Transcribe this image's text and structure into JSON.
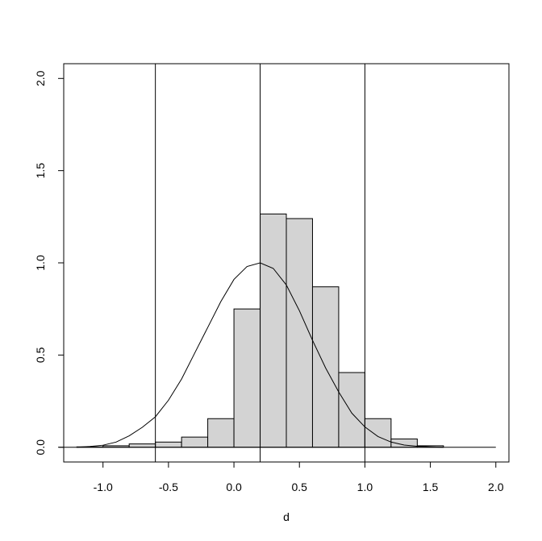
{
  "chart_data": {
    "type": "bar",
    "title": "",
    "xlabel": "d",
    "ylabel": "",
    "xlim": [
      -1.3,
      2.1
    ],
    "ylim": [
      -0.08,
      2.08
    ],
    "xticks": [
      -1.0,
      -0.5,
      0.0,
      0.5,
      1.0,
      1.5,
      2.0
    ],
    "xtick_labels": [
      "-1.0",
      "-0.5",
      "0.0",
      "0.5",
      "1.0",
      "1.5",
      "2.0"
    ],
    "yticks": [
      0.0,
      0.5,
      1.0,
      1.5,
      2.0
    ],
    "ytick_labels": [
      "0.0",
      "0.5",
      "1.0",
      "1.5",
      "2.0"
    ],
    "grid": false,
    "bar_fill": "#d3d3d3",
    "line_color": "#000000",
    "histogram": {
      "bin_edges": [
        -1.2,
        -1.0,
        -0.8,
        -0.6,
        -0.4,
        -0.2,
        0.0,
        0.2,
        0.4,
        0.6,
        0.8,
        1.0,
        1.2,
        1.4,
        1.6
      ],
      "densities": [
        0.002,
        0.008,
        0.018,
        0.028,
        0.055,
        0.155,
        0.75,
        1.265,
        1.24,
        0.87,
        0.405,
        0.155,
        0.045,
        0.008
      ]
    },
    "density_curve": {
      "x": [
        -1.2,
        -1.1,
        -1.0,
        -0.9,
        -0.8,
        -0.7,
        -0.6,
        -0.5,
        -0.4,
        -0.3,
        -0.2,
        -0.1,
        0.0,
        0.1,
        0.2,
        0.3,
        0.4,
        0.5,
        0.6,
        0.7,
        0.8,
        0.9,
        1.0,
        1.1,
        1.2,
        1.3,
        1.4,
        1.5,
        1.6
      ],
      "y": [
        0.0,
        0.004,
        0.011,
        0.028,
        0.062,
        0.108,
        0.165,
        0.255,
        0.37,
        0.51,
        0.65,
        0.79,
        0.91,
        0.98,
        1.0,
        0.97,
        0.88,
        0.74,
        0.58,
        0.43,
        0.3,
        0.185,
        0.11,
        0.058,
        0.028,
        0.012,
        0.005,
        0.002,
        0.0
      ]
    },
    "vertical_lines": [
      -0.6,
      0.2,
      1.0
    ],
    "baseline": 0.0
  }
}
